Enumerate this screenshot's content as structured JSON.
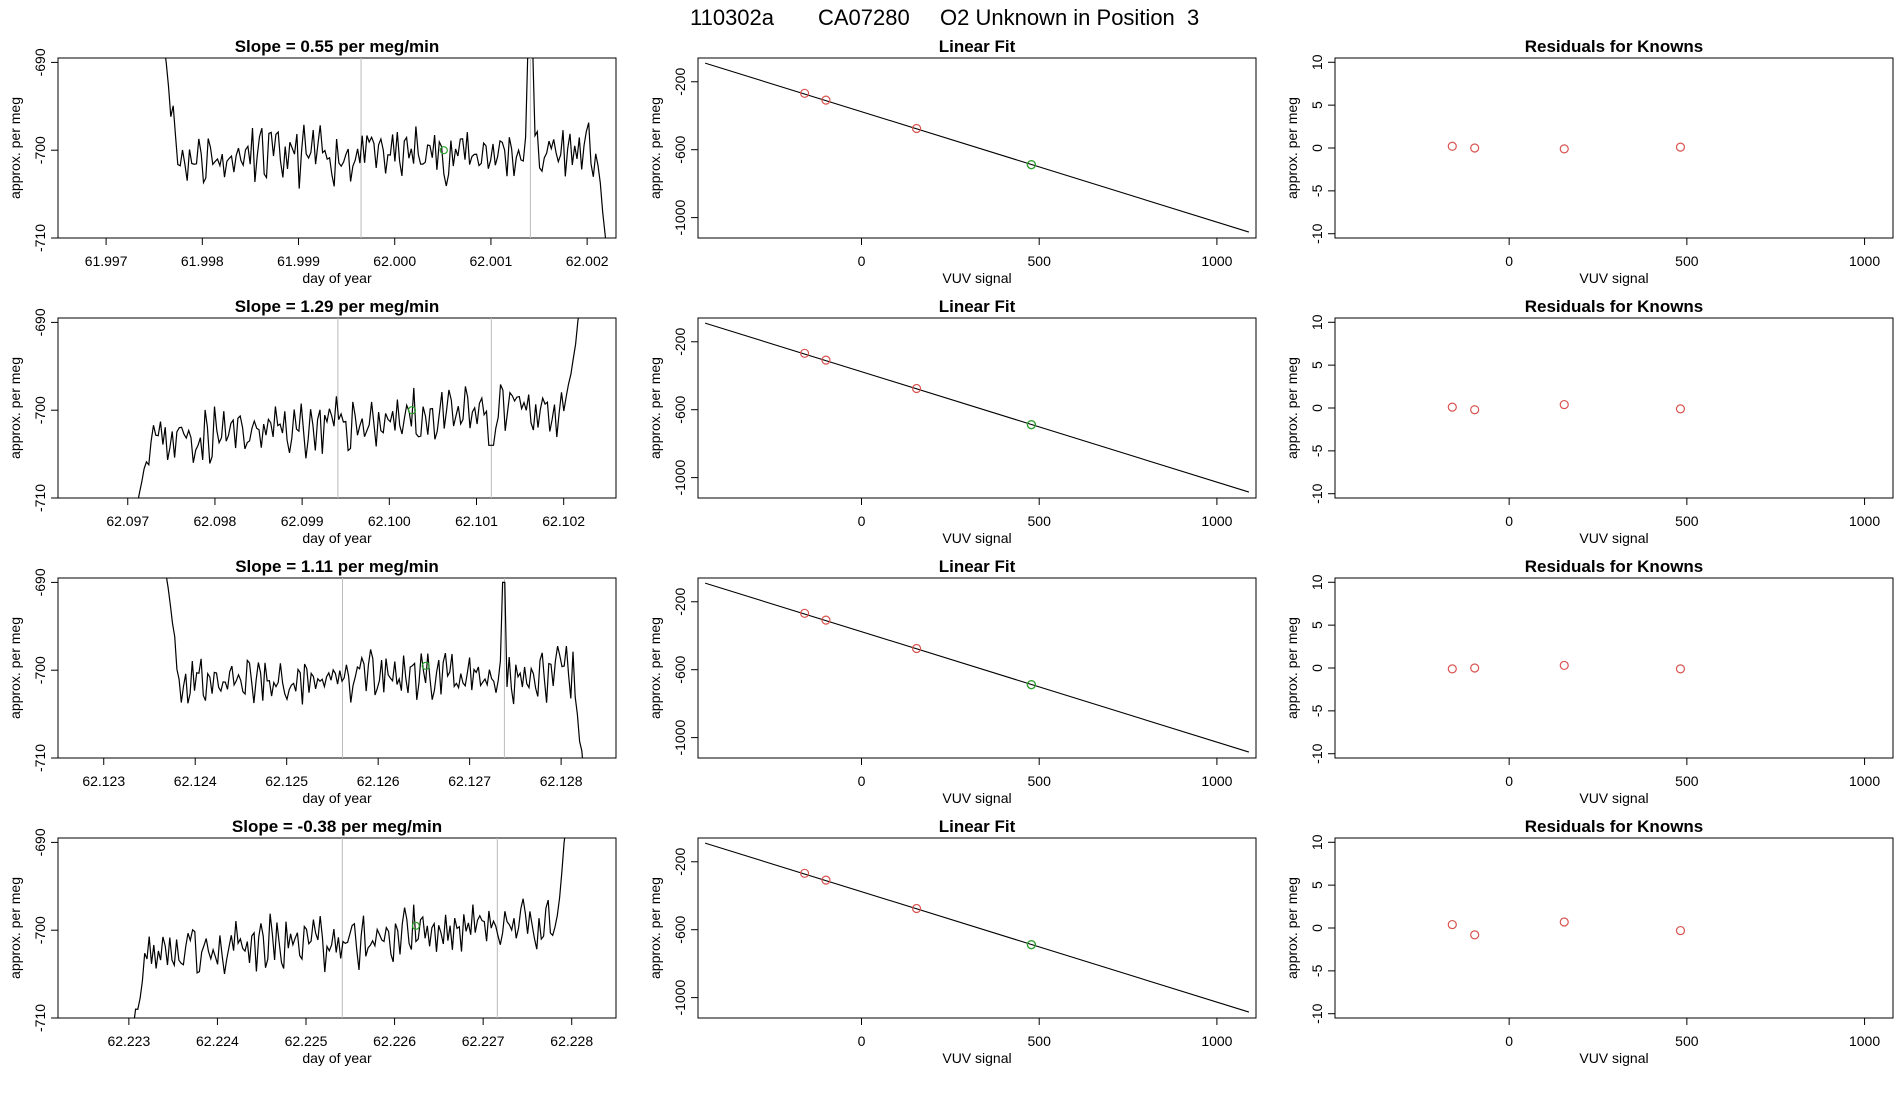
{
  "figure": {
    "sample_id": "110302a",
    "tank_id": "CA07280",
    "unknown_label": "O2 Unknown in Position  3"
  },
  "colors": {
    "line": "#000000",
    "known_point": "#d9534f",
    "unknown_point": "#2ca02c",
    "vline": "#bbbbbb",
    "frame": "#000000"
  },
  "chart_data": [
    {
      "type": "line",
      "title_prefix": "Slope = ",
      "slope": "0.55",
      "title_suffix": " per meg/min",
      "xlabel": "day of year",
      "ylabel": "approx. per meg",
      "xlim": [
        61.9965,
        62.0023
      ],
      "ylim": [
        -710,
        -689.5
      ],
      "xticks": [
        "61.997",
        "61.998",
        "61.999",
        "62.000",
        "62.001",
        "62.002"
      ],
      "yticks": [
        "-690",
        "-700",
        "-710"
      ],
      "vlines": [
        61.99965,
        62.00141
      ],
      "unknown_point": {
        "x": 62.00051,
        "y": -700.0
      },
      "series_seed": 11,
      "start_x": 61.9976,
      "end_x": 62.00221,
      "start_y": -688,
      "end_y": -712,
      "mean_y": -700.5,
      "noise": 2.6,
      "trend": 0.8,
      "spikes": [
        {
          "x": 62.00141,
          "y": -688.0
        }
      ]
    },
    {
      "type": "line",
      "title_prefix": "Slope = ",
      "slope": "1.29",
      "title_suffix": " per meg/min",
      "xlabel": "day of year",
      "ylabel": "approx. per meg",
      "xlim": [
        62.0962,
        62.1026
      ],
      "ylim": [
        -710,
        -689.5
      ],
      "xticks": [
        "62.097",
        "62.098",
        "62.099",
        "62.100",
        "62.101",
        "62.102"
      ],
      "yticks": [
        "-690",
        "-700",
        "-710"
      ],
      "vlines": [
        62.09941,
        62.10117
      ],
      "unknown_point": {
        "x": 62.10026,
        "y": -700.0
      },
      "series_seed": 23,
      "start_x": 62.09708,
      "end_x": 62.10219,
      "start_y": -712,
      "end_y": -688,
      "mean_y": -701.5,
      "noise": 2.4,
      "trend": 4.0,
      "spikes": [
        {
          "x": 62.10117,
          "y": -704.0
        }
      ]
    },
    {
      "type": "line",
      "title_prefix": "Slope = ",
      "slope": "1.11",
      "title_suffix": " per meg/min",
      "xlabel": "day of year",
      "ylabel": "approx. per meg",
      "xlim": [
        62.1225,
        62.1286
      ],
      "ylim": [
        -710,
        -689.5
      ],
      "xticks": [
        "62.123",
        "62.124",
        "62.125",
        "62.126",
        "62.127",
        "62.128"
      ],
      "yticks": [
        "-690",
        "-700",
        "-710"
      ],
      "vlines": [
        62.12561,
        62.12738
      ],
      "unknown_point": {
        "x": 62.12652,
        "y": -699.5
      },
      "series_seed": 37,
      "start_x": 62.12368,
      "end_x": 62.12825,
      "start_y": -689,
      "end_y": -712,
      "mean_y": -700.8,
      "noise": 2.2,
      "trend": 1.0,
      "spikes": [
        {
          "x": 62.12738,
          "y": -690.0
        }
      ]
    },
    {
      "type": "line",
      "title_prefix": "Slope = ",
      "slope": "-0.38",
      "title_suffix": " per meg/min",
      "xlabel": "day of year",
      "ylabel": "approx. per meg",
      "xlim": [
        62.2222,
        62.2285
      ],
      "ylim": [
        -710,
        -689.5
      ],
      "xticks": [
        "62.223",
        "62.224",
        "62.225",
        "62.226",
        "62.227",
        "62.228"
      ],
      "yticks": [
        "-690",
        "-700",
        "-710"
      ],
      "vlines": [
        62.22541,
        62.22716
      ],
      "unknown_point": {
        "x": 62.22624,
        "y": -699.5
      },
      "series_seed": 53,
      "start_x": 62.22305,
      "end_x": 62.22794,
      "start_y": -711,
      "end_y": -688,
      "mean_y": -701.0,
      "noise": 2.5,
      "trend": 3.0,
      "spikes": []
    },
    {
      "type": "scatter",
      "title": "Linear Fit",
      "xlabel": "VUV signal",
      "ylabel": "approx. per meg",
      "xlim": [
        -460,
        1110
      ],
      "ylim": [
        -1120,
        -60
      ],
      "xticks": [
        "0",
        "500",
        "1000"
      ],
      "yticks": [
        "-200",
        "-600",
        "-1000"
      ],
      "fit_line": {
        "x": [
          -440,
          1090
        ],
        "y": [
          -90,
          -1085
        ]
      },
      "known_points": [
        {
          "x": -160,
          "y": -268
        },
        {
          "x": -100,
          "y": -308
        },
        {
          "x": 155,
          "y": -475
        }
      ],
      "unknown_points": [
        {
          "x": 478,
          "y": -688
        }
      ]
    },
    {
      "type": "scatter",
      "title": "Residuals for Knowns",
      "xlabel": "VUV signal",
      "ylabel": "approx. per meg",
      "xlim": [
        -490,
        1080
      ],
      "ylim": [
        -10.5,
        10.5
      ],
      "xticks": [
        "0",
        "500",
        "1000"
      ],
      "yticks": [
        "10",
        "5",
        "0",
        "-5",
        "-10"
      ],
      "points": [
        {
          "x": -160,
          "y": 0.2
        },
        {
          "x": -97,
          "y": 0.0
        },
        {
          "x": 155,
          "y": -0.1
        },
        {
          "x": 482,
          "y": 0.1
        }
      ]
    },
    {
      "type": "scatter",
      "title": "Linear Fit",
      "xlabel": "VUV signal",
      "ylabel": "approx. per meg",
      "xlim": [
        -460,
        1110
      ],
      "ylim": [
        -1120,
        -60
      ],
      "xticks": [
        "0",
        "500",
        "1000"
      ],
      "yticks": [
        "-200",
        "-600",
        "-1000"
      ],
      "fit_line": {
        "x": [
          -440,
          1090
        ],
        "y": [
          -90,
          -1085
        ]
      },
      "known_points": [
        {
          "x": -160,
          "y": -268
        },
        {
          "x": -100,
          "y": -308
        },
        {
          "x": 155,
          "y": -475
        }
      ],
      "unknown_points": [
        {
          "x": 478,
          "y": -688
        }
      ]
    },
    {
      "type": "scatter",
      "title": "Residuals for Knowns",
      "xlabel": "VUV signal",
      "ylabel": "approx. per meg",
      "xlim": [
        -490,
        1080
      ],
      "ylim": [
        -10.5,
        10.5
      ],
      "xticks": [
        "0",
        "500",
        "1000"
      ],
      "yticks": [
        "10",
        "5",
        "0",
        "-5",
        "-10"
      ],
      "points": [
        {
          "x": -160,
          "y": 0.1
        },
        {
          "x": -97,
          "y": -0.2
        },
        {
          "x": 155,
          "y": 0.4
        },
        {
          "x": 482,
          "y": -0.1
        }
      ]
    },
    {
      "type": "scatter",
      "title": "Linear Fit",
      "xlabel": "VUV signal",
      "ylabel": "approx. per meg",
      "xlim": [
        -460,
        1110
      ],
      "ylim": [
        -1120,
        -60
      ],
      "xticks": [
        "0",
        "500",
        "1000"
      ],
      "yticks": [
        "-200",
        "-600",
        "-1000"
      ],
      "fit_line": {
        "x": [
          -440,
          1090
        ],
        "y": [
          -90,
          -1085
        ]
      },
      "known_points": [
        {
          "x": -160,
          "y": -268
        },
        {
          "x": -100,
          "y": -308
        },
        {
          "x": 155,
          "y": -475
        }
      ],
      "unknown_points": [
        {
          "x": 478,
          "y": -688
        }
      ]
    },
    {
      "type": "scatter",
      "title": "Residuals for Knowns",
      "xlabel": "VUV signal",
      "ylabel": "approx. per meg",
      "xlim": [
        -490,
        1080
      ],
      "ylim": [
        -10.5,
        10.5
      ],
      "xticks": [
        "0",
        "500",
        "1000"
      ],
      "yticks": [
        "10",
        "5",
        "0",
        "-5",
        "-10"
      ],
      "points": [
        {
          "x": -160,
          "y": -0.1
        },
        {
          "x": -97,
          "y": 0.0
        },
        {
          "x": 155,
          "y": 0.3
        },
        {
          "x": 482,
          "y": -0.1
        }
      ]
    },
    {
      "type": "scatter",
      "title": "Linear Fit",
      "xlabel": "VUV signal",
      "ylabel": "approx. per meg",
      "xlim": [
        -460,
        1110
      ],
      "ylim": [
        -1120,
        -60
      ],
      "xticks": [
        "0",
        "500",
        "1000"
      ],
      "yticks": [
        "-200",
        "-600",
        "-1000"
      ],
      "fit_line": {
        "x": [
          -440,
          1090
        ],
        "y": [
          -90,
          -1085
        ]
      },
      "known_points": [
        {
          "x": -160,
          "y": -268
        },
        {
          "x": -100,
          "y": -308
        },
        {
          "x": 155,
          "y": -475
        }
      ],
      "unknown_points": [
        {
          "x": 478,
          "y": -688
        }
      ]
    },
    {
      "type": "scatter",
      "title": "Residuals for Knowns",
      "xlabel": "VUV signal",
      "ylabel": "approx. per meg",
      "xlim": [
        -490,
        1080
      ],
      "ylim": [
        -10.5,
        10.5
      ],
      "xticks": [
        "0",
        "500",
        "1000"
      ],
      "yticks": [
        "10",
        "5",
        "0",
        "-5",
        "-10"
      ],
      "points": [
        {
          "x": -160,
          "y": 0.4
        },
        {
          "x": -97,
          "y": -0.8
        },
        {
          "x": 155,
          "y": 0.7
        },
        {
          "x": 482,
          "y": -0.3
        }
      ]
    }
  ]
}
